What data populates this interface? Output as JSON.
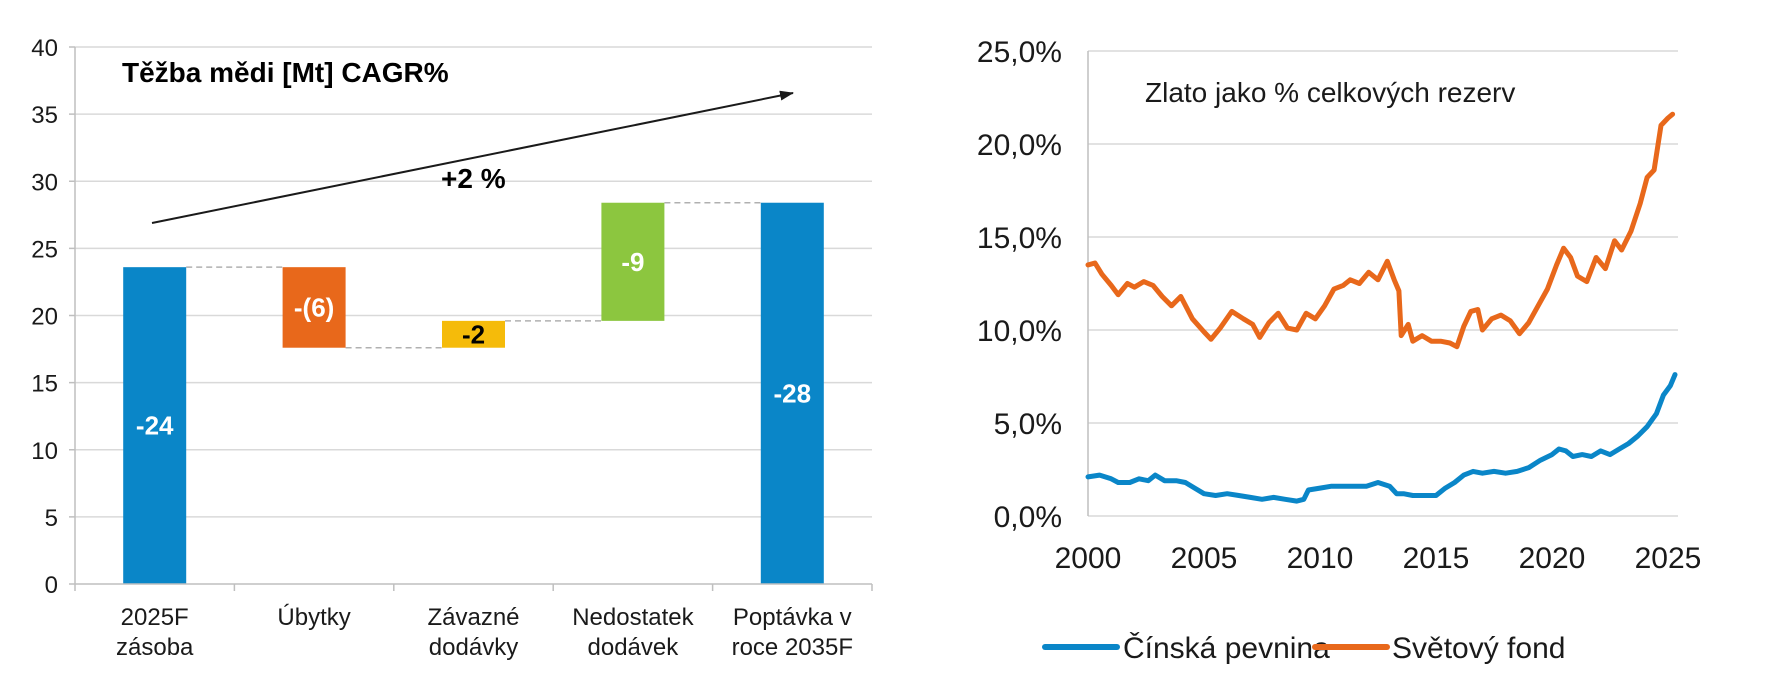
{
  "chart_data": [
    {
      "type": "bar",
      "subtype": "waterfall",
      "title": "Těžba mědi [Mt] CAGR%",
      "annotation": "+2 %",
      "ylim": [
        0,
        40
      ],
      "yticks": [
        "0",
        "5",
        "10",
        "15",
        "20",
        "25",
        "30",
        "35",
        "40"
      ],
      "grid": true,
      "categories": [
        [
          "2025F",
          "zásoba"
        ],
        [
          "Úbytky"
        ],
        [
          "Závazné",
          "dodávky"
        ],
        [
          "Nedostatek",
          "dodávek"
        ],
        [
          "Poptávka v",
          "roce 2035F"
        ]
      ],
      "bars": [
        {
          "start": 0,
          "end": 23.6,
          "label": "-24",
          "color": "#0a86c8",
          "label_color": "#ffffff"
        },
        {
          "start": 17.6,
          "end": 23.6,
          "label": "-(6)",
          "color": "#e8681b",
          "label_color": "#ffffff"
        },
        {
          "start": 17.6,
          "end": 19.6,
          "label": "-2",
          "color": "#f5bb0a",
          "label_color": "#000000"
        },
        {
          "start": 19.6,
          "end": 28.4,
          "label": "-9",
          "color": "#8cc63f",
          "label_color": "#ffffff"
        },
        {
          "start": 0,
          "end": 28.4,
          "label": "-28",
          "color": "#0a86c8",
          "label_color": "#ffffff"
        }
      ]
    },
    {
      "type": "line",
      "title": "Zlato jako % celkových rezerv",
      "ylim": [
        0,
        25
      ],
      "xlim": [
        2000,
        2025.5
      ],
      "yticks": [
        "0,0%",
        "5,0%",
        "10,0%",
        "15,0%",
        "20,0%",
        "25,0%"
      ],
      "xticks": [
        "2000",
        "2005",
        "2010",
        "2015",
        "2020",
        "2025"
      ],
      "grid": true,
      "legend_position": "bottom",
      "series": [
        {
          "name": "Čínská pevnina",
          "color": "#0a86c8",
          "points": [
            [
              2000.0,
              2.1
            ],
            [
              2000.5,
              2.2
            ],
            [
              2001.0,
              2.0
            ],
            [
              2001.3,
              1.8
            ],
            [
              2001.8,
              1.8
            ],
            [
              2002.2,
              2.0
            ],
            [
              2002.6,
              1.9
            ],
            [
              2002.9,
              2.2
            ],
            [
              2003.3,
              1.9
            ],
            [
              2003.8,
              1.9
            ],
            [
              2004.2,
              1.8
            ],
            [
              2004.6,
              1.5
            ],
            [
              2005.0,
              1.2
            ],
            [
              2005.5,
              1.1
            ],
            [
              2006.0,
              1.2
            ],
            [
              2006.5,
              1.1
            ],
            [
              2007.0,
              1.0
            ],
            [
              2007.5,
              0.9
            ],
            [
              2008.0,
              1.0
            ],
            [
              2008.5,
              0.9
            ],
            [
              2009.0,
              0.8
            ],
            [
              2009.3,
              0.9
            ],
            [
              2009.5,
              1.4
            ],
            [
              2010.0,
              1.5
            ],
            [
              2010.5,
              1.6
            ],
            [
              2011.0,
              1.6
            ],
            [
              2011.5,
              1.6
            ],
            [
              2012.0,
              1.6
            ],
            [
              2012.5,
              1.8
            ],
            [
              2013.0,
              1.6
            ],
            [
              2013.3,
              1.2
            ],
            [
              2013.6,
              1.2
            ],
            [
              2014.0,
              1.1
            ],
            [
              2014.5,
              1.1
            ],
            [
              2015.0,
              1.1
            ],
            [
              2015.4,
              1.5
            ],
            [
              2015.8,
              1.8
            ],
            [
              2016.2,
              2.2
            ],
            [
              2016.6,
              2.4
            ],
            [
              2017.0,
              2.3
            ],
            [
              2017.5,
              2.4
            ],
            [
              2018.0,
              2.3
            ],
            [
              2018.5,
              2.4
            ],
            [
              2019.0,
              2.6
            ],
            [
              2019.5,
              3.0
            ],
            [
              2020.0,
              3.3
            ],
            [
              2020.3,
              3.6
            ],
            [
              2020.6,
              3.5
            ],
            [
              2020.9,
              3.2
            ],
            [
              2021.3,
              3.3
            ],
            [
              2021.7,
              3.2
            ],
            [
              2022.1,
              3.5
            ],
            [
              2022.5,
              3.3
            ],
            [
              2022.9,
              3.6
            ],
            [
              2023.3,
              3.9
            ],
            [
              2023.7,
              4.3
            ],
            [
              2024.1,
              4.8
            ],
            [
              2024.5,
              5.5
            ],
            [
              2024.8,
              6.5
            ],
            [
              2025.1,
              7.0
            ],
            [
              2025.3,
              7.6
            ]
          ]
        },
        {
          "name": "Světový fond",
          "color": "#e8681b",
          "points": [
            [
              2000.0,
              13.5
            ],
            [
              2000.3,
              13.6
            ],
            [
              2000.6,
              13.0
            ],
            [
              2001.0,
              12.4
            ],
            [
              2001.3,
              11.9
            ],
            [
              2001.7,
              12.5
            ],
            [
              2002.0,
              12.3
            ],
            [
              2002.4,
              12.6
            ],
            [
              2002.8,
              12.4
            ],
            [
              2003.2,
              11.8
            ],
            [
              2003.6,
              11.3
            ],
            [
              2004.0,
              11.8
            ],
            [
              2004.5,
              10.6
            ],
            [
              2005.0,
              9.9
            ],
            [
              2005.3,
              9.5
            ],
            [
              2005.7,
              10.1
            ],
            [
              2006.2,
              11.0
            ],
            [
              2006.7,
              10.6
            ],
            [
              2007.1,
              10.3
            ],
            [
              2007.4,
              9.6
            ],
            [
              2007.8,
              10.4
            ],
            [
              2008.2,
              10.9
            ],
            [
              2008.6,
              10.1
            ],
            [
              2009.0,
              10.0
            ],
            [
              2009.4,
              10.9
            ],
            [
              2009.8,
              10.6
            ],
            [
              2010.2,
              11.3
            ],
            [
              2010.6,
              12.2
            ],
            [
              2011.0,
              12.4
            ],
            [
              2011.3,
              12.7
            ],
            [
              2011.7,
              12.5
            ],
            [
              2012.1,
              13.1
            ],
            [
              2012.5,
              12.7
            ],
            [
              2012.9,
              13.7
            ],
            [
              2013.2,
              12.7
            ],
            [
              2013.4,
              12.1
            ],
            [
              2013.5,
              9.7
            ],
            [
              2013.8,
              10.3
            ],
            [
              2014.0,
              9.4
            ],
            [
              2014.4,
              9.7
            ],
            [
              2014.8,
              9.4
            ],
            [
              2015.2,
              9.4
            ],
            [
              2015.6,
              9.3
            ],
            [
              2015.9,
              9.1
            ],
            [
              2016.2,
              10.2
            ],
            [
              2016.5,
              11.0
            ],
            [
              2016.8,
              11.1
            ],
            [
              2017.0,
              10.0
            ],
            [
              2017.4,
              10.6
            ],
            [
              2017.8,
              10.8
            ],
            [
              2018.2,
              10.5
            ],
            [
              2018.6,
              9.8
            ],
            [
              2019.0,
              10.4
            ],
            [
              2019.4,
              11.3
            ],
            [
              2019.8,
              12.2
            ],
            [
              2020.2,
              13.5
            ],
            [
              2020.5,
              14.4
            ],
            [
              2020.8,
              13.9
            ],
            [
              2021.1,
              12.9
            ],
            [
              2021.5,
              12.6
            ],
            [
              2021.9,
              13.9
            ],
            [
              2022.3,
              13.3
            ],
            [
              2022.7,
              14.8
            ],
            [
              2023.0,
              14.3
            ],
            [
              2023.4,
              15.3
            ],
            [
              2023.8,
              16.8
            ],
            [
              2024.1,
              18.2
            ],
            [
              2024.4,
              18.6
            ],
            [
              2024.7,
              21.0
            ],
            [
              2025.0,
              21.4
            ],
            [
              2025.2,
              21.6
            ]
          ]
        }
      ]
    }
  ]
}
